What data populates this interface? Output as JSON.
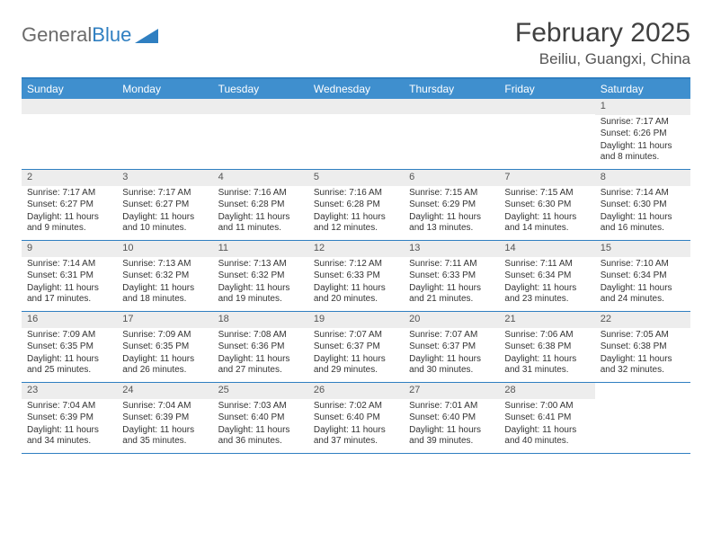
{
  "logo": {
    "text_part1": "General",
    "text_part2": "Blue",
    "accent_color": "#2f7fc1"
  },
  "title": "February 2025",
  "location": "Beiliu, Guangxi, China",
  "day_header_bg": "#3f8fce",
  "day_header_fg": "#ffffff",
  "border_color": "#2f7fc1",
  "daynum_bg": "#ededed",
  "day_names": [
    "Sunday",
    "Monday",
    "Tuesday",
    "Wednesday",
    "Thursday",
    "Friday",
    "Saturday"
  ],
  "label_sunrise": "Sunrise:",
  "label_sunset": "Sunset:",
  "label_daylight": "Daylight:",
  "weeks": [
    [
      null,
      null,
      null,
      null,
      null,
      null,
      {
        "n": "1",
        "sunrise": "7:17 AM",
        "sunset": "6:26 PM",
        "daylight": "11 hours and 8 minutes."
      }
    ],
    [
      {
        "n": "2",
        "sunrise": "7:17 AM",
        "sunset": "6:27 PM",
        "daylight": "11 hours and 9 minutes."
      },
      {
        "n": "3",
        "sunrise": "7:17 AM",
        "sunset": "6:27 PM",
        "daylight": "11 hours and 10 minutes."
      },
      {
        "n": "4",
        "sunrise": "7:16 AM",
        "sunset": "6:28 PM",
        "daylight": "11 hours and 11 minutes."
      },
      {
        "n": "5",
        "sunrise": "7:16 AM",
        "sunset": "6:28 PM",
        "daylight": "11 hours and 12 minutes."
      },
      {
        "n": "6",
        "sunrise": "7:15 AM",
        "sunset": "6:29 PM",
        "daylight": "11 hours and 13 minutes."
      },
      {
        "n": "7",
        "sunrise": "7:15 AM",
        "sunset": "6:30 PM",
        "daylight": "11 hours and 14 minutes."
      },
      {
        "n": "8",
        "sunrise": "7:14 AM",
        "sunset": "6:30 PM",
        "daylight": "11 hours and 16 minutes."
      }
    ],
    [
      {
        "n": "9",
        "sunrise": "7:14 AM",
        "sunset": "6:31 PM",
        "daylight": "11 hours and 17 minutes."
      },
      {
        "n": "10",
        "sunrise": "7:13 AM",
        "sunset": "6:32 PM",
        "daylight": "11 hours and 18 minutes."
      },
      {
        "n": "11",
        "sunrise": "7:13 AM",
        "sunset": "6:32 PM",
        "daylight": "11 hours and 19 minutes."
      },
      {
        "n": "12",
        "sunrise": "7:12 AM",
        "sunset": "6:33 PM",
        "daylight": "11 hours and 20 minutes."
      },
      {
        "n": "13",
        "sunrise": "7:11 AM",
        "sunset": "6:33 PM",
        "daylight": "11 hours and 21 minutes."
      },
      {
        "n": "14",
        "sunrise": "7:11 AM",
        "sunset": "6:34 PM",
        "daylight": "11 hours and 23 minutes."
      },
      {
        "n": "15",
        "sunrise": "7:10 AM",
        "sunset": "6:34 PM",
        "daylight": "11 hours and 24 minutes."
      }
    ],
    [
      {
        "n": "16",
        "sunrise": "7:09 AM",
        "sunset": "6:35 PM",
        "daylight": "11 hours and 25 minutes."
      },
      {
        "n": "17",
        "sunrise": "7:09 AM",
        "sunset": "6:35 PM",
        "daylight": "11 hours and 26 minutes."
      },
      {
        "n": "18",
        "sunrise": "7:08 AM",
        "sunset": "6:36 PM",
        "daylight": "11 hours and 27 minutes."
      },
      {
        "n": "19",
        "sunrise": "7:07 AM",
        "sunset": "6:37 PM",
        "daylight": "11 hours and 29 minutes."
      },
      {
        "n": "20",
        "sunrise": "7:07 AM",
        "sunset": "6:37 PM",
        "daylight": "11 hours and 30 minutes."
      },
      {
        "n": "21",
        "sunrise": "7:06 AM",
        "sunset": "6:38 PM",
        "daylight": "11 hours and 31 minutes."
      },
      {
        "n": "22",
        "sunrise": "7:05 AM",
        "sunset": "6:38 PM",
        "daylight": "11 hours and 32 minutes."
      }
    ],
    [
      {
        "n": "23",
        "sunrise": "7:04 AM",
        "sunset": "6:39 PM",
        "daylight": "11 hours and 34 minutes."
      },
      {
        "n": "24",
        "sunrise": "7:04 AM",
        "sunset": "6:39 PM",
        "daylight": "11 hours and 35 minutes."
      },
      {
        "n": "25",
        "sunrise": "7:03 AM",
        "sunset": "6:40 PM",
        "daylight": "11 hours and 36 minutes."
      },
      {
        "n": "26",
        "sunrise": "7:02 AM",
        "sunset": "6:40 PM",
        "daylight": "11 hours and 37 minutes."
      },
      {
        "n": "27",
        "sunrise": "7:01 AM",
        "sunset": "6:40 PM",
        "daylight": "11 hours and 39 minutes."
      },
      {
        "n": "28",
        "sunrise": "7:00 AM",
        "sunset": "6:41 PM",
        "daylight": "11 hours and 40 minutes."
      },
      null
    ]
  ]
}
